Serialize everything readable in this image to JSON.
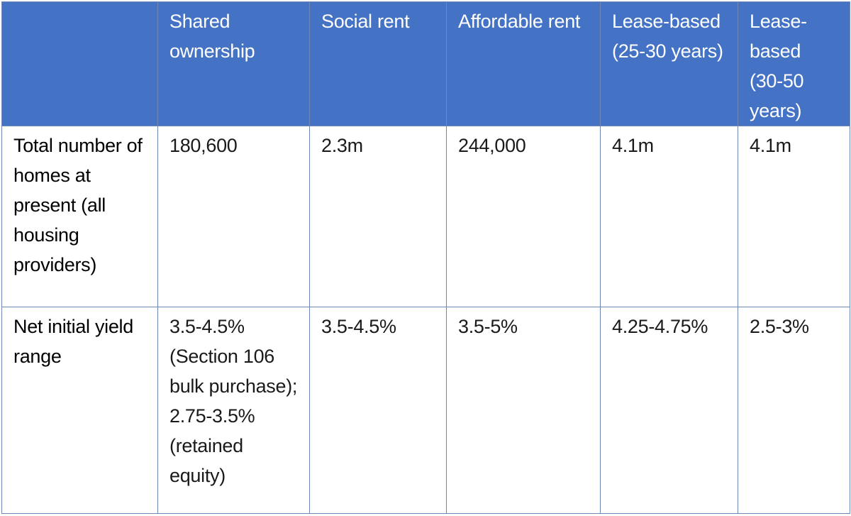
{
  "table": {
    "header_color": "#4472c4",
    "border_color": "#6f87b5",
    "columns": [
      "",
      "Shared ownership",
      "Social rent",
      "Affordable rent",
      "Lease-based (25-30 years)",
      "Lease-based (30-50 years)"
    ],
    "rows": [
      {
        "label": "Total number of homes at present (all housing providers)",
        "cells": [
          "180,600",
          "2.3m",
          "244,000",
          "4.1m",
          "4.1m"
        ]
      },
      {
        "label": "Net initial yield range",
        "cells": [
          "3.5-4.5% (Section 106 bulk purchase); 2.75-3.5% (retained equity)",
          "3.5-4.5%",
          "3.5-5%",
          "4.25-4.75%",
          "2.5-3%"
        ]
      }
    ]
  }
}
